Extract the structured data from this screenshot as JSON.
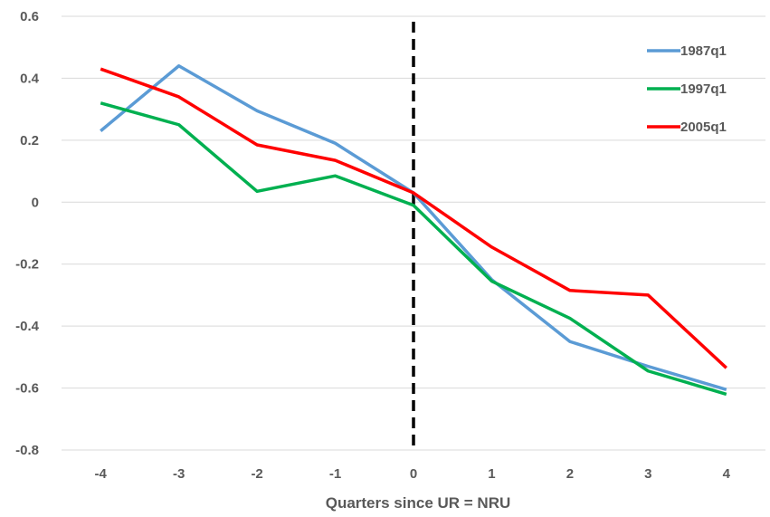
{
  "chart_data": {
    "type": "line",
    "title": "",
    "xlabel": "Quarters since UR = NRU",
    "ylabel": "",
    "x": [
      -4,
      -3,
      -2,
      -1,
      0,
      1,
      2,
      3,
      4
    ],
    "x_tick_labels": [
      "-4",
      "-3",
      "-2",
      "-1",
      "0",
      "1",
      "2",
      "3",
      "4"
    ],
    "ylim": [
      -0.8,
      0.6
    ],
    "y_ticks": [
      0.6,
      0.4,
      0.2,
      0,
      -0.2,
      -0.4,
      -0.6,
      -0.8
    ],
    "y_tick_labels": [
      "0.6",
      "0.4",
      "0.2",
      "0",
      "-0.2",
      "-0.4",
      "-0.6",
      "-0.8"
    ],
    "grid": true,
    "legend_position": "top-right",
    "reference_line": {
      "x": 0,
      "style": "dashed",
      "color": "#000000"
    },
    "series": [
      {
        "name": "1987q1",
        "color": "#5b9bd5",
        "values": [
          0.23,
          0.44,
          0.295,
          0.19,
          0.03,
          -0.25,
          -0.45,
          -0.53,
          -0.605
        ]
      },
      {
        "name": "1997q1",
        "color": "#00b050",
        "values": [
          0.32,
          0.25,
          0.035,
          0.085,
          -0.01,
          -0.255,
          -0.375,
          -0.545,
          -0.62
        ]
      },
      {
        "name": "2005q1",
        "color": "#ff0000",
        "values": [
          0.43,
          0.34,
          0.185,
          0.135,
          0.03,
          -0.145,
          -0.285,
          -0.3,
          -0.535
        ]
      }
    ]
  }
}
